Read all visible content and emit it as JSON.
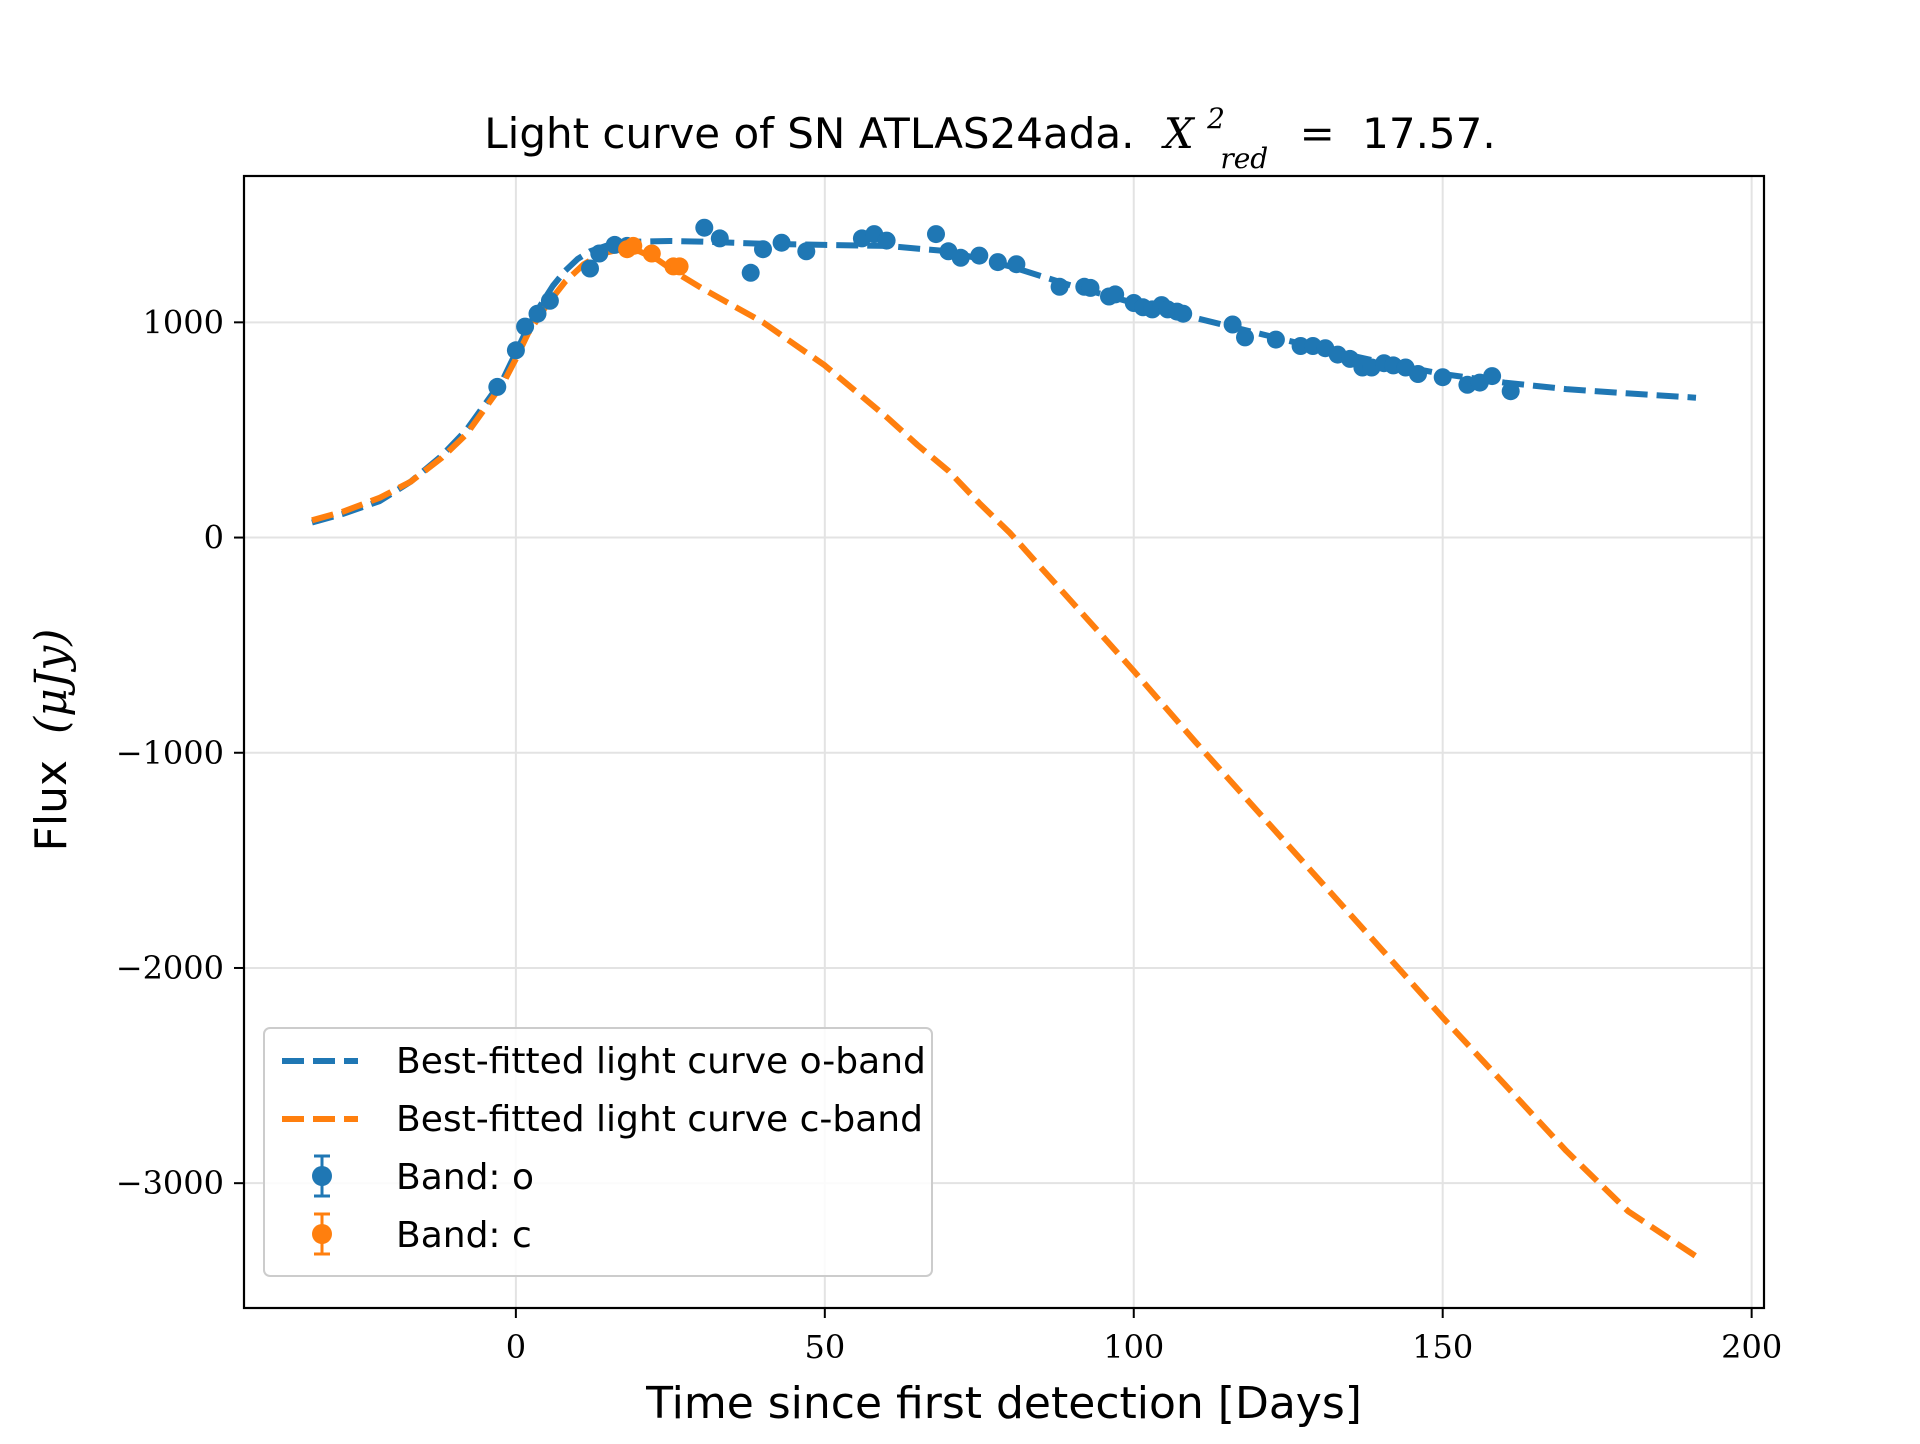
{
  "chart_data": {
    "type": "line",
    "title": {
      "main": "Light curve of SN ATLAS24ada.",
      "chi_symbol": "X",
      "chi_superscript": "2",
      "chi_subscript": "red",
      "equals": "=",
      "chi_value": "17.57."
    },
    "xlabel": "Time since first detection [Days]",
    "ylabel": {
      "main": "Flux",
      "unit": "(μJy)"
    },
    "xlim": [
      -44,
      202
    ],
    "ylim": [
      -3580,
      1680
    ],
    "x_ticks": [
      0,
      50,
      100,
      150,
      200
    ],
    "x_tick_labels": [
      "0",
      "50",
      "100",
      "150",
      "200"
    ],
    "y_ticks": [
      1000,
      0,
      -1000,
      -2000,
      -3000
    ],
    "y_tick_labels": [
      "1000",
      "0",
      "−1000",
      "−2000",
      "−3000"
    ],
    "grid": true,
    "legend_position": "lower-left",
    "colors": {
      "o_band": "#1f77b4",
      "c_band": "#ff7f0e"
    },
    "series": [
      {
        "name": "Best-fitted light curve o-band",
        "kind": "fit",
        "style": "dashed",
        "color": "#1f77b4",
        "x": [
          -33,
          -28,
          -22,
          -17,
          -12,
          -8,
          -5,
          -2,
          0,
          2,
          4,
          6,
          8,
          10,
          12,
          15,
          20,
          25,
          30,
          40,
          50,
          60,
          70,
          80,
          90,
          100,
          110,
          120,
          130,
          140,
          150,
          160,
          170,
          180,
          191
        ],
        "y": [
          70,
          110,
          170,
          260,
          380,
          500,
          620,
          740,
          860,
          980,
          1080,
          1170,
          1240,
          1295,
          1330,
          1360,
          1375,
          1378,
          1375,
          1365,
          1360,
          1355,
          1330,
          1260,
          1170,
          1090,
          1020,
          950,
          880,
          815,
          760,
          720,
          690,
          670,
          650
        ]
      },
      {
        "name": "Best-fitted light curve c-band",
        "kind": "fit",
        "style": "dashed",
        "color": "#ff7f0e",
        "x": [
          -33,
          -28,
          -22,
          -17,
          -12,
          -8,
          -5,
          -2,
          0,
          2,
          5,
          8,
          11,
          14,
          17,
          20,
          23,
          26,
          30,
          35,
          40,
          45,
          50,
          55,
          60,
          65,
          70,
          75,
          80,
          85,
          90,
          95,
          100,
          110,
          120,
          130,
          140,
          150,
          160,
          170,
          180,
          191
        ],
        "y": [
          80,
          120,
          185,
          260,
          370,
          480,
          600,
          720,
          830,
          950,
          1080,
          1190,
          1270,
          1320,
          1340,
          1330,
          1290,
          1230,
          1160,
          1080,
          1000,
          900,
          800,
          680,
          560,
          430,
          310,
          160,
          20,
          -140,
          -300,
          -460,
          -620,
          -950,
          -1270,
          -1590,
          -1910,
          -2230,
          -2540,
          -2850,
          -3130,
          -3340
        ]
      },
      {
        "name": "Band: o",
        "kind": "points",
        "color": "#1f77b4",
        "x": [
          -3,
          0,
          1.5,
          3.5,
          5.5,
          12,
          13.5,
          16,
          18,
          30.5,
          33,
          38,
          40,
          43,
          47,
          56,
          58,
          60,
          68,
          70,
          72,
          75,
          78,
          81,
          88,
          92,
          93,
          96,
          97,
          100,
          101.5,
          103,
          104.5,
          105.5,
          107,
          108,
          116,
          118,
          123,
          127,
          129,
          131,
          133,
          135,
          137,
          138.5,
          140.5,
          142,
          144,
          146,
          150,
          154,
          156,
          158,
          161
        ],
        "y": [
          700,
          870,
          980,
          1040,
          1100,
          1250,
          1320,
          1360,
          1355,
          1440,
          1390,
          1230,
          1340,
          1370,
          1330,
          1390,
          1410,
          1380,
          1410,
          1330,
          1300,
          1310,
          1280,
          1270,
          1165,
          1165,
          1160,
          1120,
          1130,
          1090,
          1070,
          1060,
          1080,
          1060,
          1050,
          1040,
          990,
          930,
          920,
          890,
          890,
          880,
          850,
          830,
          790,
          790,
          810,
          800,
          790,
          760,
          745,
          710,
          720,
          750,
          680
        ]
      },
      {
        "name": "Band: c",
        "kind": "points",
        "color": "#ff7f0e",
        "x": [
          18,
          19,
          22,
          25.5,
          26.5
        ],
        "y": [
          1340,
          1355,
          1320,
          1260,
          1260
        ]
      }
    ]
  }
}
